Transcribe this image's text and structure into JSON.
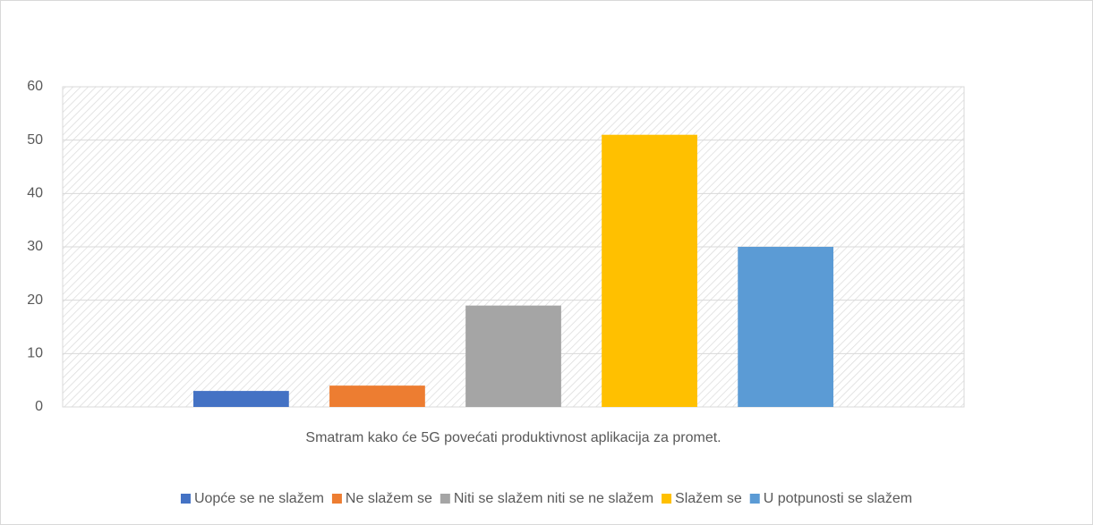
{
  "chart_data": {
    "type": "bar",
    "categories": [
      "Smatram kako će 5G povećati produktivnost aplikacija za promet."
    ],
    "series": [
      {
        "name": "Uopće se ne slažem",
        "color": "#4472c4",
        "values": [
          3
        ]
      },
      {
        "name": "Ne slažem se",
        "color": "#ed7d31",
        "values": [
          4
        ]
      },
      {
        "name": "Niti se slažem niti se ne slažem",
        "color": "#a5a5a5",
        "values": [
          19
        ]
      },
      {
        "name": "Slažem se",
        "color": "#ffc000",
        "values": [
          51
        ]
      },
      {
        "name": "U potpunosti se slažem",
        "color": "#5b9bd5",
        "values": [
          30
        ]
      }
    ],
    "ylim": [
      0,
      60
    ],
    "yticks": [
      0,
      10,
      20,
      30,
      40,
      50,
      60
    ],
    "grid": true,
    "legend": "bottom"
  }
}
